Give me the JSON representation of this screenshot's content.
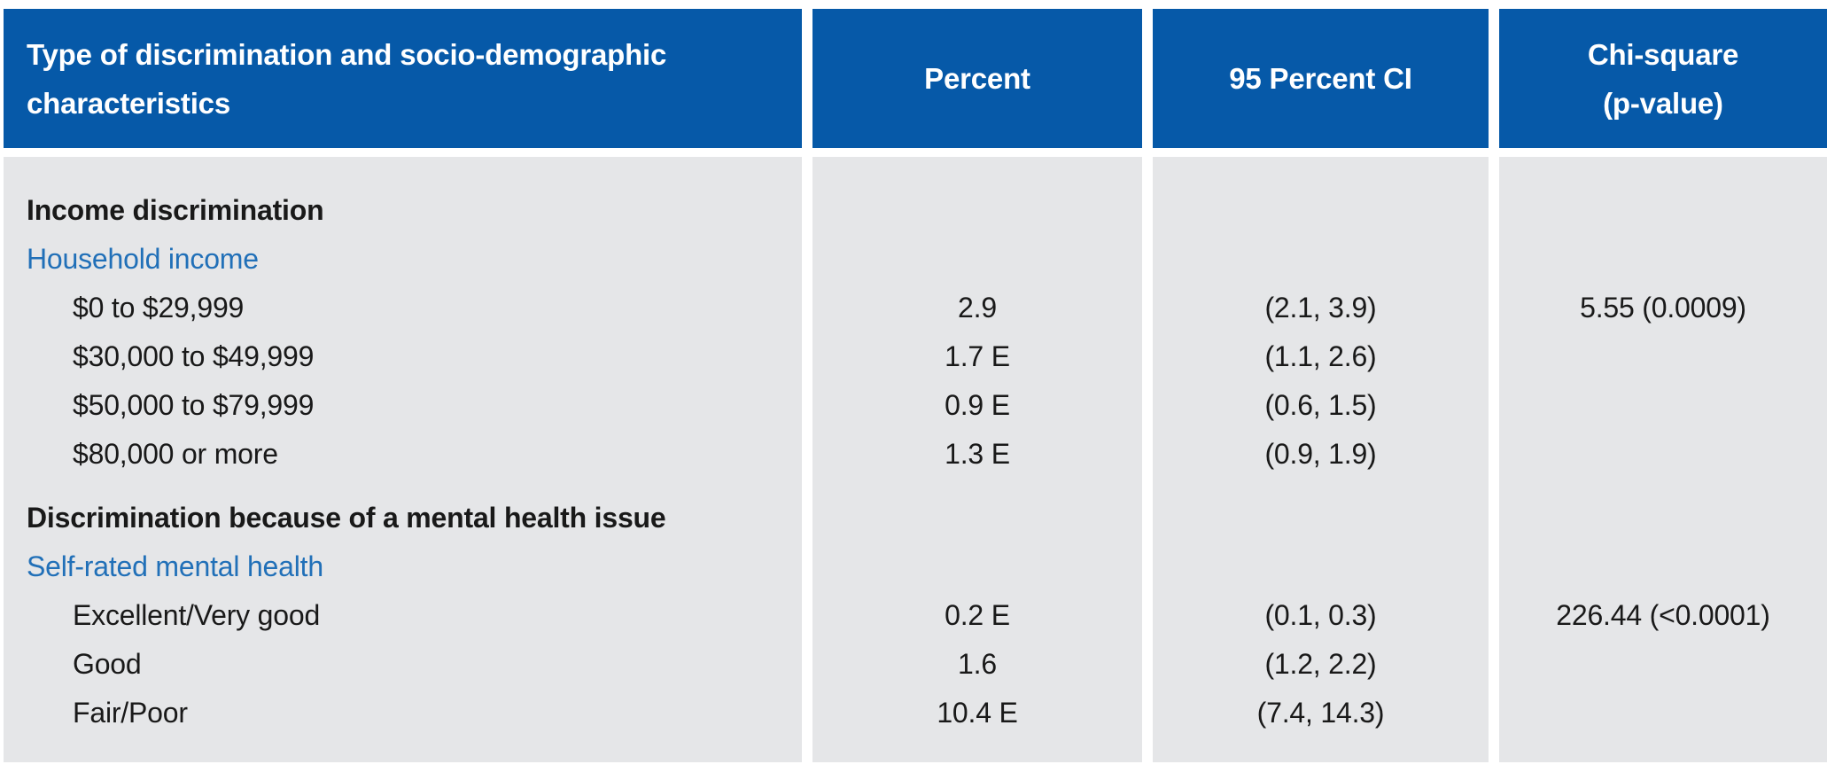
{
  "colors": {
    "header_bg": "#0659A8",
    "header_text": "#FFFFFF",
    "body_bg": "#E5E6E8",
    "text": "#191919",
    "subsection_blue": "#2170B8"
  },
  "header": {
    "col1": "Type of discrimination and socio-demographic characteristics",
    "col2": "Percent",
    "col3": "95 Percent CI",
    "col4": "Chi-square\n(p-value)"
  },
  "chart_data": {
    "type": "table",
    "columns": [
      "Type of discrimination and socio-demographic characteristics",
      "Percent",
      "95 Percent CI",
      "Chi-square (p-value)"
    ],
    "rows": [
      {
        "type": "section",
        "label": "Income discrimination",
        "percent": "",
        "ci": "",
        "chi": ""
      },
      {
        "type": "subsection",
        "label": "Household income",
        "percent": "",
        "ci": "",
        "chi": ""
      },
      {
        "type": "data",
        "label": "$0 to $29,999",
        "percent": "2.9",
        "ci": "(2.1, 3.9)",
        "chi": "5.55 (0.0009)"
      },
      {
        "type": "data",
        "label": "$30,000 to $49,999",
        "percent": "1.7 E",
        "ci": "(1.1, 2.6)",
        "chi": ""
      },
      {
        "type": "data",
        "label": "$50,000 to $79,999",
        "percent": "0.9 E",
        "ci": "(0.6, 1.5)",
        "chi": ""
      },
      {
        "type": "data",
        "label": "$80,000 or more",
        "percent": "1.3 E",
        "ci": "(0.9, 1.9)",
        "chi": ""
      },
      {
        "type": "section",
        "label": "Discrimination because of a mental health issue",
        "percent": "",
        "ci": "",
        "chi": "",
        "spacer_before": true
      },
      {
        "type": "subsection",
        "label": "Self-rated mental health",
        "percent": "",
        "ci": "",
        "chi": ""
      },
      {
        "type": "data",
        "label": "Excellent/Very good",
        "percent": "0.2 E",
        "ci": "(0.1, 0.3)",
        "chi": "226.44 (<0.0001)"
      },
      {
        "type": "data",
        "label": "Good",
        "percent": "1.6",
        "ci": "(1.2, 2.2)",
        "chi": ""
      },
      {
        "type": "data",
        "label": "Fair/Poor",
        "percent": "10.4 E",
        "ci": "(7.4, 14.3)",
        "chi": ""
      }
    ]
  }
}
